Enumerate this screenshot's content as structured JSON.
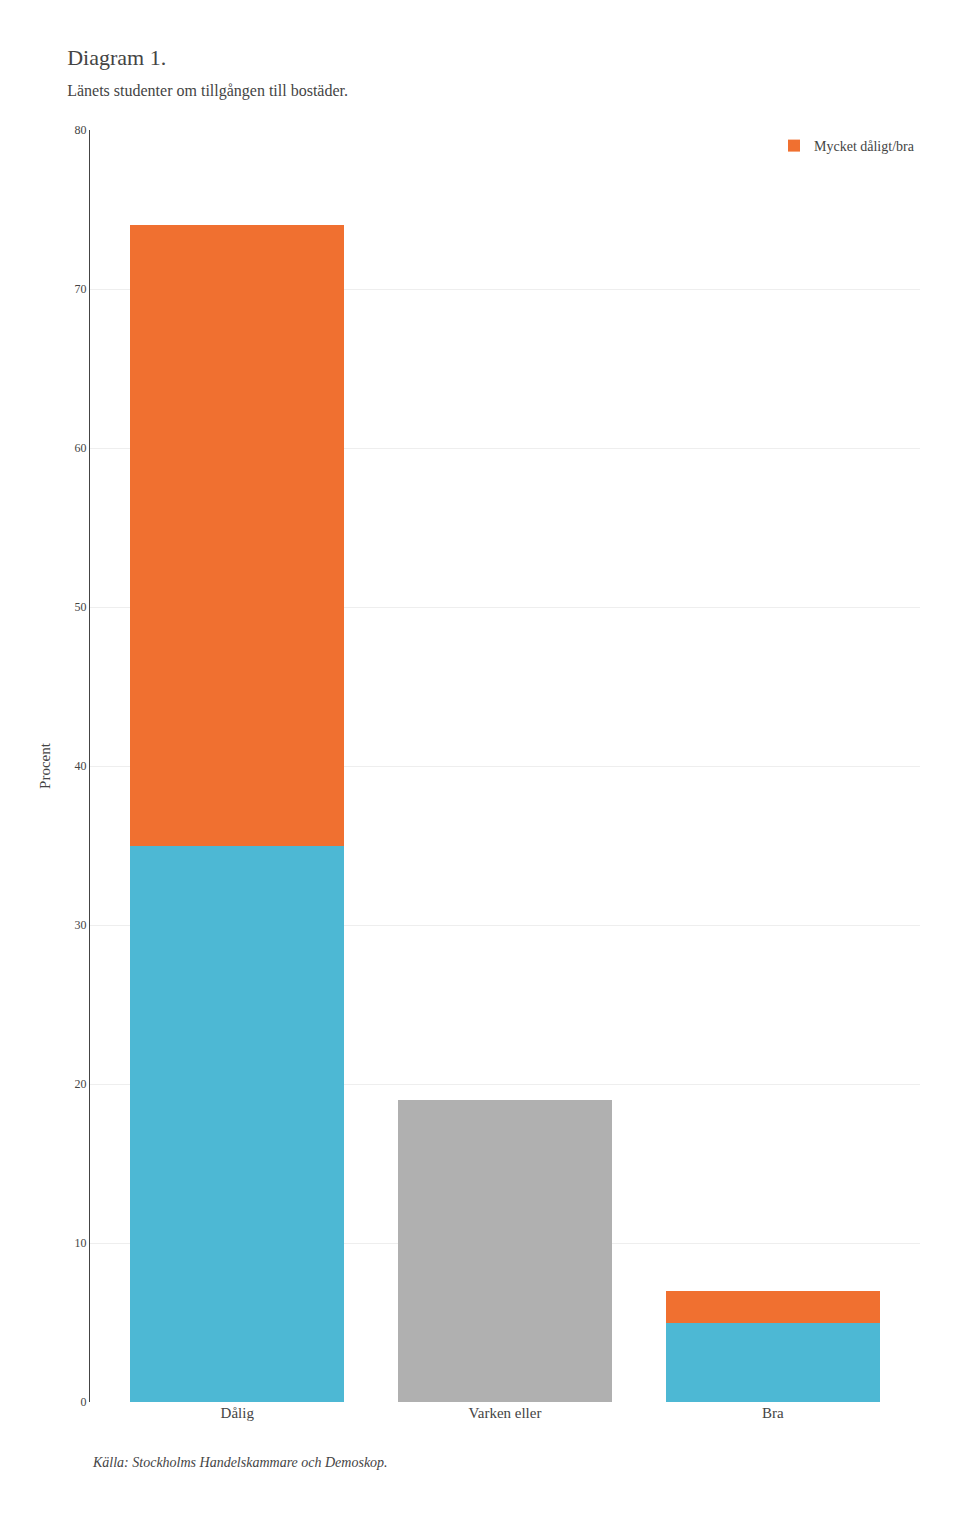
{
  "chart_data": {
    "type": "bar",
    "title": "Diagram 1.",
    "subtitle": "Länets studenter om tillgången till bostäder.",
    "categories": [
      "Dålig",
      "Varken eller",
      "Bra"
    ],
    "series": [
      {
        "colors": [
          "#4db8d4",
          "#b0b0b0",
          "#4db8d4"
        ],
        "values": [
          35,
          19,
          5
        ]
      },
      {
        "name": "Mycket dåligt/bra",
        "color": "#f07030",
        "values": [
          39,
          0,
          2
        ]
      }
    ],
    "stacked": true,
    "ylabel": "Procent",
    "ylim": [
      0,
      80
    ],
    "yticks": [
      0,
      10,
      20,
      30,
      40,
      50,
      60,
      70,
      80
    ],
    "grid": true,
    "legend": "upper right",
    "annotations": [
      "Källa: Stockholms Handelskammare och Demoskop."
    ]
  }
}
